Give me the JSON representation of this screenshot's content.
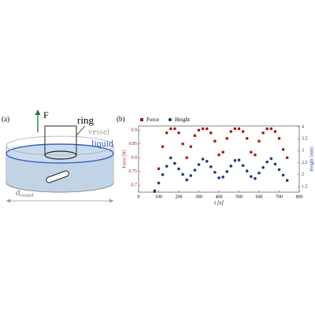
{
  "diagram": {
    "panel_label": "(a)",
    "force": "F",
    "ring": "ring",
    "vessel": "vessel",
    "liquid": "liquid",
    "diameter": {
      "main": "d",
      "subscript": "vessel"
    }
  },
  "chart_data": {
    "type": "scatter",
    "panel_label": "(b)",
    "xlabel": "t [s]",
    "ylabel": "Force [N]",
    "y2label": "Height [mm]",
    "xlim": [
      0,
      800
    ],
    "xticks": [
      0,
      100,
      200,
      300,
      400,
      500,
      600,
      700,
      800
    ],
    "ylim": [
      0.675,
      0.915
    ],
    "yticks": [
      0.7,
      0.75,
      0.8,
      0.85,
      0.9
    ],
    "y2lim": [
      1.27,
      4.03
    ],
    "y2ticks": [
      1.5,
      2,
      2.5,
      3,
      3.5,
      4
    ],
    "legend": "upper left",
    "x": [
      80,
      100,
      120,
      140,
      160,
      180,
      200,
      220,
      240,
      260,
      280,
      300,
      320,
      340,
      360,
      380,
      400,
      420,
      440,
      460,
      480,
      500,
      520,
      540,
      560,
      580,
      600,
      620,
      640,
      660,
      680,
      700,
      720,
      740
    ],
    "series": [
      {
        "name": "Force",
        "color": "#a01414",
        "marker": "square",
        "values": [
          0.68,
          0.76,
          0.84,
          0.89,
          0.905,
          0.905,
          0.89,
          0.85,
          0.8,
          0.84,
          0.88,
          0.9,
          0.905,
          0.905,
          0.89,
          0.86,
          0.81,
          0.82,
          0.87,
          0.895,
          0.905,
          0.905,
          0.895,
          0.87,
          0.82,
          0.81,
          0.86,
          0.89,
          0.905,
          0.905,
          0.895,
          0.87,
          0.83,
          0.8
        ]
      },
      {
        "name": "Height",
        "color": "#1f3c78",
        "marker": "circle",
        "axis": "y2",
        "values": [
          1.3,
          1.65,
          2.0,
          2.35,
          2.7,
          2.47,
          2.24,
          2.01,
          1.78,
          1.96,
          2.19,
          2.42,
          2.65,
          2.56,
          2.33,
          2.1,
          1.87,
          1.9,
          2.13,
          2.36,
          2.59,
          2.61,
          2.38,
          2.15,
          1.92,
          1.84,
          2.07,
          2.3,
          2.53,
          2.67,
          2.44,
          2.21,
          1.98,
          1.76
        ]
      }
    ]
  }
}
